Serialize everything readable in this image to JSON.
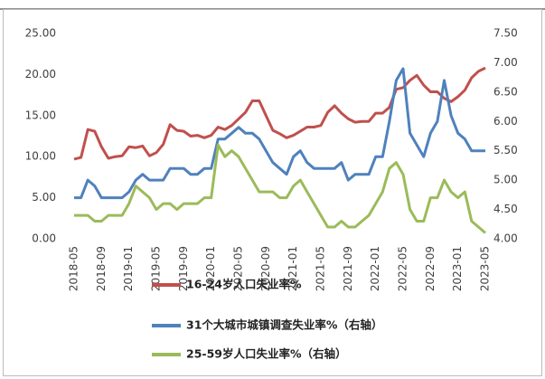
{
  "chart_data": {
    "type": "line",
    "categories": [
      "2018-05",
      null,
      null,
      null,
      "2018-09",
      null,
      null,
      null,
      "2019-01",
      null,
      null,
      null,
      "2019-05",
      null,
      null,
      null,
      "2019-09",
      null,
      null,
      null,
      "2020-01",
      null,
      null,
      null,
      "2020-05",
      null,
      null,
      null,
      "2020-09",
      null,
      null,
      null,
      "2021-01",
      null,
      null,
      null,
      "2021-05",
      null,
      null,
      null,
      "2021-09",
      null,
      null,
      null,
      "2022-01",
      null,
      null,
      null,
      "2022-05",
      null,
      null,
      null,
      "2022-09",
      null,
      null,
      null,
      "2023-01",
      null,
      null,
      null,
      "2023-05"
    ],
    "series": [
      {
        "name": "16-24岁人口失业率%",
        "color": "#c0504d",
        "values": [
          9.7,
          9.9,
          13.3,
          13.1,
          11.2,
          9.8,
          10.0,
          10.1,
          11.2,
          11.1,
          11.3,
          10.1,
          10.5,
          11.5,
          13.9,
          13.2,
          13.1,
          12.5,
          12.6,
          12.3,
          12.6,
          13.6,
          13.3,
          13.8,
          14.6,
          15.4,
          16.8,
          16.8,
          15.0,
          13.2,
          12.8,
          12.3,
          12.6,
          13.1,
          13.6,
          13.6,
          13.8,
          15.4,
          16.2,
          15.3,
          14.6,
          14.2,
          14.3,
          14.3,
          15.3,
          15.3,
          16.0,
          18.2,
          18.4,
          19.3,
          19.9,
          18.7,
          17.9,
          17.9,
          17.1,
          16.7,
          17.3,
          18.1,
          19.6,
          20.4,
          20.8
        ]
      },
      {
        "name": "31个大城市城镇调查失业率%（右轴）",
        "color": "#4f81bd",
        "axis": "y2",
        "values": [
          4.7,
          4.7,
          5.0,
          4.9,
          4.7,
          4.7,
          4.7,
          4.7,
          4.8,
          5.0,
          5.1,
          5.0,
          5.0,
          5.0,
          5.2,
          5.2,
          5.2,
          5.1,
          5.1,
          5.2,
          5.2,
          5.7,
          5.7,
          5.8,
          5.9,
          5.8,
          5.8,
          5.7,
          5.5,
          5.3,
          5.2,
          5.1,
          5.4,
          5.5,
          5.3,
          5.2,
          5.2,
          5.2,
          5.2,
          5.3,
          5.0,
          5.1,
          5.1,
          5.1,
          5.4,
          5.4,
          6.0,
          6.7,
          6.9,
          5.8,
          5.6,
          5.4,
          5.8,
          6.0,
          6.7,
          6.1,
          5.8,
          5.7,
          5.5,
          5.5,
          5.5
        ]
      },
      {
        "name": "25-59岁人口失业率%（右轴）",
        "color": "#9bbb59",
        "axis": "y2",
        "values": [
          4.4,
          4.4,
          4.4,
          4.3,
          4.3,
          4.4,
          4.4,
          4.4,
          4.6,
          4.9,
          4.8,
          4.7,
          4.5,
          4.6,
          4.6,
          4.5,
          4.6,
          4.6,
          4.6,
          4.7,
          4.7,
          5.6,
          5.4,
          5.5,
          5.4,
          5.2,
          5.0,
          4.8,
          4.8,
          4.8,
          4.7,
          4.7,
          4.9,
          5.0,
          4.8,
          4.6,
          4.4,
          4.2,
          4.2,
          4.3,
          4.2,
          4.2,
          4.3,
          4.4,
          4.6,
          4.8,
          5.2,
          5.3,
          5.1,
          4.5,
          4.3,
          4.3,
          4.7,
          4.7,
          5.0,
          4.8,
          4.7,
          4.8,
          4.3,
          4.2,
          4.1
        ]
      }
    ],
    "ylim": [
      0,
      25
    ],
    "yticks": [
      {
        "value": 0,
        "label": "0.00"
      },
      {
        "value": 5,
        "label": "5.00"
      },
      {
        "value": 10,
        "label": "10.00"
      },
      {
        "value": 15,
        "label": "15.00"
      },
      {
        "value": 20,
        "label": "20.00"
      },
      {
        "value": 25,
        "label": "25.00"
      }
    ],
    "y2lim": [
      4,
      7.5
    ],
    "y2ticks": [
      {
        "value": 4,
        "label": "4.00"
      },
      {
        "value": 4.5,
        "label": "4.50"
      },
      {
        "value": 5,
        "label": "5.00"
      },
      {
        "value": 5.5,
        "label": "5.50"
      },
      {
        "value": 6,
        "label": "6.00"
      },
      {
        "value": 6.5,
        "label": "6.50"
      },
      {
        "value": 7,
        "label": "7.00"
      },
      {
        "value": 7.5,
        "label": "7.50"
      }
    ],
    "grid": false,
    "legend": "bottom"
  }
}
